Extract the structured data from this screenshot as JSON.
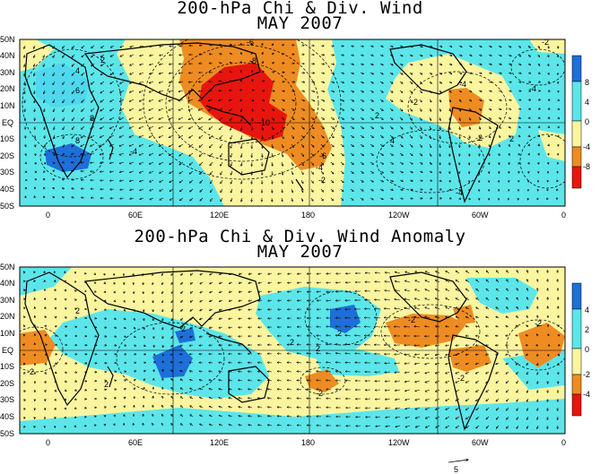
{
  "colors": {
    "strong_blue": "#1e6fd9",
    "light_blue": "#5ce6ea",
    "pale_yellow": "#fbf5a0",
    "orange": "#ee8c22",
    "red": "#e8150f"
  },
  "map1": {
    "title": "200-hPa Chi & Div. Wind",
    "subtitle": "MAY 2007",
    "lat_labels": [
      "50N",
      "40N",
      "30N",
      "20N",
      "10N",
      "EQ",
      "10S",
      "20S",
      "30S",
      "40S",
      "50S"
    ],
    "lon_labels": [
      "0",
      "60E",
      "120E",
      "180",
      "120W",
      "60W",
      "0"
    ],
    "colorbar": [
      "8",
      "4",
      "0",
      "-4",
      "-8"
    ],
    "contour_labels": [
      "-6",
      "-8",
      "-10",
      "-6",
      "-4",
      "-2",
      "-2",
      "-4",
      "2",
      "-2",
      "-4",
      "-2",
      "-4",
      "8",
      "8",
      "-4",
      "6",
      "2",
      "4",
      "4",
      "2"
    ]
  },
  "map2": {
    "title": "200-hPa Chi & Div. Wind Anomaly",
    "subtitle": "MAY 2007",
    "lat_labels": [
      "50N",
      "40N",
      "30N",
      "20N",
      "10N",
      "EQ",
      "10S",
      "20S",
      "30S",
      "40S",
      "50S"
    ],
    "lon_labels": [
      "0",
      "60E",
      "120E",
      "180",
      "120W",
      "60W",
      "0"
    ],
    "colorbar": [
      "4",
      "2",
      "0",
      "-2",
      "-4"
    ],
    "contour_labels": [
      "-2",
      "2",
      "2",
      "2",
      "2",
      "-2",
      "-2",
      "-2",
      "-2",
      "2",
      "2"
    ]
  },
  "reference_vector": "5"
}
